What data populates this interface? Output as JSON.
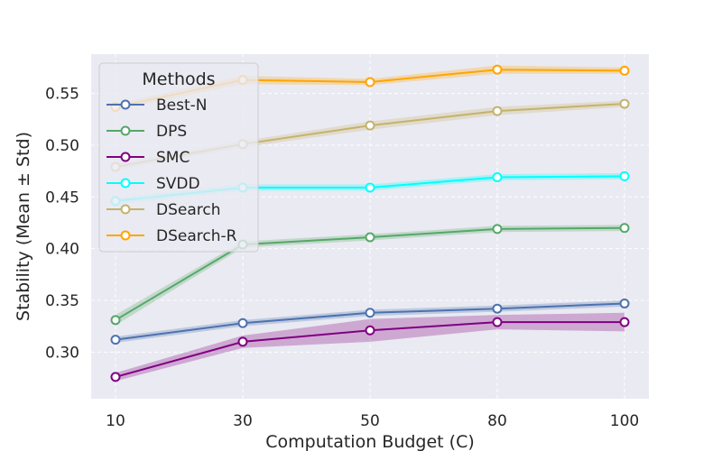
{
  "chart_data": {
    "type": "line",
    "title": "",
    "xlabel": "Computation Budget (C)",
    "ylabel": "Stability (Mean ± Std)",
    "x": [
      10,
      30,
      50,
      80,
      100
    ],
    "x_tick_labels": [
      "10",
      "30",
      "50",
      "80",
      "100"
    ],
    "y_ticks": [
      0.3,
      0.35,
      0.4,
      0.45,
      0.5,
      0.55
    ],
    "y_tick_labels": [
      "0.30",
      "0.35",
      "0.40",
      "0.45",
      "0.50",
      "0.55"
    ],
    "ylim": [
      0.255,
      0.588
    ],
    "grid": true,
    "legend_title": "Methods",
    "legend_position": "upper-left",
    "series": [
      {
        "name": "Best-N",
        "color": "#4c72b0",
        "values": [
          0.312,
          0.328,
          0.338,
          0.342,
          0.347
        ],
        "std": [
          0.003,
          0.003,
          0.003,
          0.003,
          0.003
        ]
      },
      {
        "name": "DPS",
        "color": "#55a868",
        "values": [
          0.331,
          0.404,
          0.411,
          0.419,
          0.42
        ],
        "std": [
          0.005,
          0.003,
          0.003,
          0.003,
          0.003
        ]
      },
      {
        "name": "SMC",
        "color": "#800080",
        "values": [
          0.276,
          0.31,
          0.321,
          0.329,
          0.329
        ],
        "std": [
          0.004,
          0.006,
          0.011,
          0.007,
          0.009
        ]
      },
      {
        "name": "SVDD",
        "color": "#00ffff",
        "values": [
          0.446,
          0.459,
          0.459,
          0.469,
          0.47
        ],
        "std": [
          0.003,
          0.003,
          0.003,
          0.003,
          0.003
        ]
      },
      {
        "name": "DSearch",
        "color": "#c4b26c",
        "values": [
          0.479,
          0.501,
          0.519,
          0.533,
          0.54
        ],
        "std": [
          0.003,
          0.003,
          0.004,
          0.004,
          0.003
        ]
      },
      {
        "name": "DSearch-R",
        "color": "#ffa500",
        "values": [
          0.537,
          0.563,
          0.561,
          0.573,
          0.572
        ],
        "std": [
          0.003,
          0.004,
          0.003,
          0.004,
          0.003
        ]
      }
    ]
  }
}
